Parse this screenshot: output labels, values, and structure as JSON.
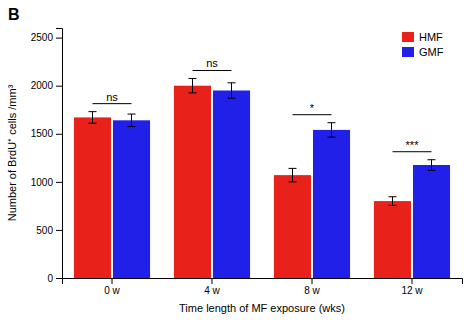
{
  "chart_data": {
    "type": "bar",
    "title": "B",
    "xlabel": "Time length of MF exposure (wks)",
    "ylabel": "Number of BrdU⁺ cells /mm³",
    "categories": [
      "0 w",
      "4 w",
      "8 w",
      "12 w"
    ],
    "series": [
      {
        "name": "HMF",
        "color": "#e8221b",
        "values": [
          1670,
          2000,
          1070,
          800
        ],
        "errors": [
          60,
          75,
          70,
          45
        ]
      },
      {
        "name": "GMF",
        "color": "#2020e8",
        "values": [
          1640,
          1950,
          1540,
          1175
        ],
        "errors": [
          65,
          80,
          75,
          55
        ]
      }
    ],
    "annotations": [
      "ns",
      "ns",
      "*",
      "***"
    ],
    "ylim": [
      0,
      2600
    ],
    "yticks": [
      0,
      500,
      1000,
      1500,
      2000,
      2500
    ],
    "legend": "upper right",
    "grid": false
  }
}
